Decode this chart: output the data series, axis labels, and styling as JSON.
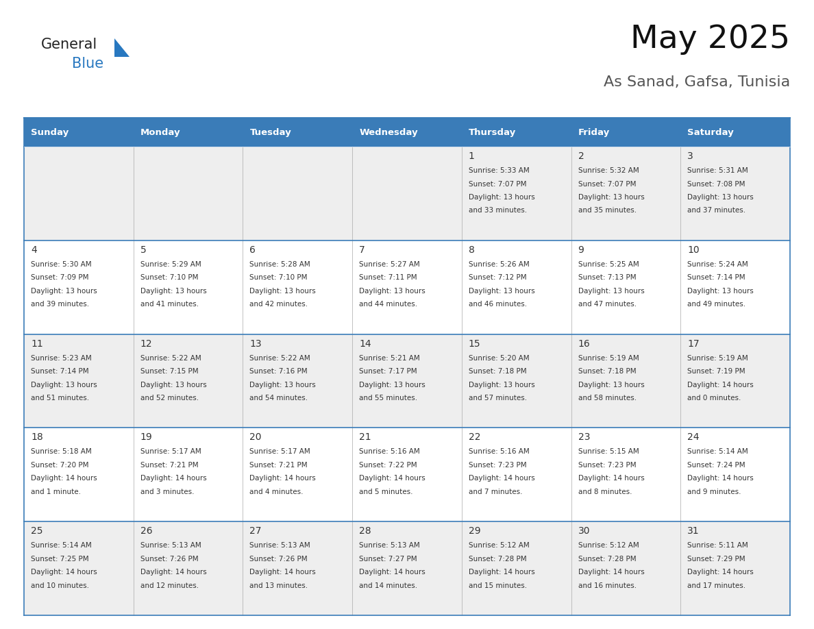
{
  "title": "May 2025",
  "subtitle": "As Sanad, Gafsa, Tunisia",
  "days_of_week": [
    "Sunday",
    "Monday",
    "Tuesday",
    "Wednesday",
    "Thursday",
    "Friday",
    "Saturday"
  ],
  "header_bg": "#3a7cb8",
  "header_text": "#ffffff",
  "row_bg_odd": "#eeeeee",
  "row_bg_even": "#ffffff",
  "cell_border": "#3a7cb8",
  "day_number_color": "#333333",
  "info_text_color": "#333333",
  "title_color": "#111111",
  "subtitle_color": "#555555",
  "calendar": [
    [
      {
        "day": "",
        "sunrise": "",
        "sunset": "",
        "daylight": ""
      },
      {
        "day": "",
        "sunrise": "",
        "sunset": "",
        "daylight": ""
      },
      {
        "day": "",
        "sunrise": "",
        "sunset": "",
        "daylight": ""
      },
      {
        "day": "",
        "sunrise": "",
        "sunset": "",
        "daylight": ""
      },
      {
        "day": "1",
        "sunrise": "5:33 AM",
        "sunset": "7:07 PM",
        "daylight_h": "13",
        "daylight_m": "33 minutes."
      },
      {
        "day": "2",
        "sunrise": "5:32 AM",
        "sunset": "7:07 PM",
        "daylight_h": "13",
        "daylight_m": "35 minutes."
      },
      {
        "day": "3",
        "sunrise": "5:31 AM",
        "sunset": "7:08 PM",
        "daylight_h": "13",
        "daylight_m": "37 minutes."
      }
    ],
    [
      {
        "day": "4",
        "sunrise": "5:30 AM",
        "sunset": "7:09 PM",
        "daylight_h": "13",
        "daylight_m": "39 minutes."
      },
      {
        "day": "5",
        "sunrise": "5:29 AM",
        "sunset": "7:10 PM",
        "daylight_h": "13",
        "daylight_m": "41 minutes."
      },
      {
        "day": "6",
        "sunrise": "5:28 AM",
        "sunset": "7:10 PM",
        "daylight_h": "13",
        "daylight_m": "42 minutes."
      },
      {
        "day": "7",
        "sunrise": "5:27 AM",
        "sunset": "7:11 PM",
        "daylight_h": "13",
        "daylight_m": "44 minutes."
      },
      {
        "day": "8",
        "sunrise": "5:26 AM",
        "sunset": "7:12 PM",
        "daylight_h": "13",
        "daylight_m": "46 minutes."
      },
      {
        "day": "9",
        "sunrise": "5:25 AM",
        "sunset": "7:13 PM",
        "daylight_h": "13",
        "daylight_m": "47 minutes."
      },
      {
        "day": "10",
        "sunrise": "5:24 AM",
        "sunset": "7:14 PM",
        "daylight_h": "13",
        "daylight_m": "49 minutes."
      }
    ],
    [
      {
        "day": "11",
        "sunrise": "5:23 AM",
        "sunset": "7:14 PM",
        "daylight_h": "13",
        "daylight_m": "51 minutes."
      },
      {
        "day": "12",
        "sunrise": "5:22 AM",
        "sunset": "7:15 PM",
        "daylight_h": "13",
        "daylight_m": "52 minutes."
      },
      {
        "day": "13",
        "sunrise": "5:22 AM",
        "sunset": "7:16 PM",
        "daylight_h": "13",
        "daylight_m": "54 minutes."
      },
      {
        "day": "14",
        "sunrise": "5:21 AM",
        "sunset": "7:17 PM",
        "daylight_h": "13",
        "daylight_m": "55 minutes."
      },
      {
        "day": "15",
        "sunrise": "5:20 AM",
        "sunset": "7:18 PM",
        "daylight_h": "13",
        "daylight_m": "57 minutes."
      },
      {
        "day": "16",
        "sunrise": "5:19 AM",
        "sunset": "7:18 PM",
        "daylight_h": "13",
        "daylight_m": "58 minutes."
      },
      {
        "day": "17",
        "sunrise": "5:19 AM",
        "sunset": "7:19 PM",
        "daylight_h": "14",
        "daylight_m": "0 minutes."
      }
    ],
    [
      {
        "day": "18",
        "sunrise": "5:18 AM",
        "sunset": "7:20 PM",
        "daylight_h": "14",
        "daylight_m": "1 minute."
      },
      {
        "day": "19",
        "sunrise": "5:17 AM",
        "sunset": "7:21 PM",
        "daylight_h": "14",
        "daylight_m": "3 minutes."
      },
      {
        "day": "20",
        "sunrise": "5:17 AM",
        "sunset": "7:21 PM",
        "daylight_h": "14",
        "daylight_m": "4 minutes."
      },
      {
        "day": "21",
        "sunrise": "5:16 AM",
        "sunset": "7:22 PM",
        "daylight_h": "14",
        "daylight_m": "5 minutes."
      },
      {
        "day": "22",
        "sunrise": "5:16 AM",
        "sunset": "7:23 PM",
        "daylight_h": "14",
        "daylight_m": "7 minutes."
      },
      {
        "day": "23",
        "sunrise": "5:15 AM",
        "sunset": "7:23 PM",
        "daylight_h": "14",
        "daylight_m": "8 minutes."
      },
      {
        "day": "24",
        "sunrise": "5:14 AM",
        "sunset": "7:24 PM",
        "daylight_h": "14",
        "daylight_m": "9 minutes."
      }
    ],
    [
      {
        "day": "25",
        "sunrise": "5:14 AM",
        "sunset": "7:25 PM",
        "daylight_h": "14",
        "daylight_m": "10 minutes."
      },
      {
        "day": "26",
        "sunrise": "5:13 AM",
        "sunset": "7:26 PM",
        "daylight_h": "14",
        "daylight_m": "12 minutes."
      },
      {
        "day": "27",
        "sunrise": "5:13 AM",
        "sunset": "7:26 PM",
        "daylight_h": "14",
        "daylight_m": "13 minutes."
      },
      {
        "day": "28",
        "sunrise": "5:13 AM",
        "sunset": "7:27 PM",
        "daylight_h": "14",
        "daylight_m": "14 minutes."
      },
      {
        "day": "29",
        "sunrise": "5:12 AM",
        "sunset": "7:28 PM",
        "daylight_h": "14",
        "daylight_m": "15 minutes."
      },
      {
        "day": "30",
        "sunrise": "5:12 AM",
        "sunset": "7:28 PM",
        "daylight_h": "14",
        "daylight_m": "16 minutes."
      },
      {
        "day": "31",
        "sunrise": "5:11 AM",
        "sunset": "7:29 PM",
        "daylight_h": "14",
        "daylight_m": "17 minutes."
      }
    ]
  ]
}
